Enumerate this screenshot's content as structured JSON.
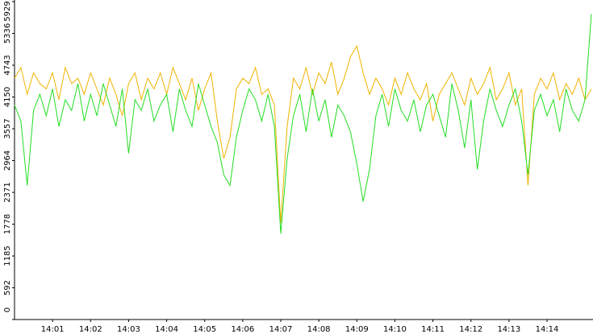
{
  "chart_data": {
    "type": "line",
    "categories": [
      null,
      null,
      null,
      null,
      null,
      null,
      "14:01",
      null,
      null,
      null,
      null,
      null,
      "14:02",
      null,
      null,
      null,
      null,
      null,
      "14:03",
      null,
      null,
      null,
      null,
      null,
      "14:04",
      null,
      null,
      null,
      null,
      null,
      "14:05",
      null,
      null,
      null,
      null,
      null,
      "14:06",
      null,
      null,
      null,
      null,
      null,
      "14:07",
      null,
      null,
      null,
      null,
      null,
      "14:08",
      null,
      null,
      null,
      null,
      null,
      "14:09",
      null,
      null,
      null,
      null,
      null,
      "14:10",
      null,
      null,
      null,
      null,
      null,
      "14:11",
      null,
      null,
      null,
      null,
      null,
      "14:12",
      null,
      null,
      null,
      null,
      null,
      "14:13",
      null,
      null,
      null,
      null,
      null,
      "14:14",
      null,
      null,
      null,
      null,
      null,
      null,
      null
    ],
    "series": [
      {
        "color": "#f0b400",
        "values": [
          4500,
          4700,
          4200,
          4600,
          4400,
          4300,
          4600,
          4100,
          4700,
          4400,
          4500,
          4200,
          4600,
          4300,
          4000,
          4500,
          4200,
          3800,
          4400,
          4600,
          4100,
          4500,
          4300,
          4600,
          4200,
          4700,
          4400,
          4100,
          4500,
          3900,
          4300,
          4600,
          3700,
          3000,
          3400,
          4300,
          4500,
          4400,
          4700,
          4200,
          4300,
          4000,
          1800,
          3600,
          4500,
          4300,
          4700,
          4200,
          4600,
          4400,
          4800,
          4200,
          4500,
          4900,
          5100,
          4600,
          4200,
          4500,
          4300,
          4000,
          4500,
          4200,
          4600,
          4300,
          4100,
          4400,
          3700,
          4200,
          4400,
          4600,
          4300,
          4000,
          4500,
          4200,
          4400,
          4700,
          4100,
          4300,
          4600,
          4000,
          4300,
          2500,
          4200,
          4500,
          4300,
          4600,
          4100,
          4400,
          4200,
          4500,
          4100,
          4300
        ]
      },
      {
        "color": "#22dd22",
        "values": [
          4000,
          3700,
          2500,
          3900,
          4200,
          3800,
          4300,
          3600,
          4100,
          3900,
          4400,
          3700,
          4200,
          3800,
          4400,
          4000,
          3600,
          4300,
          3100,
          4100,
          3900,
          4300,
          3700,
          4000,
          4200,
          3500,
          4300,
          3900,
          3600,
          4400,
          4000,
          3600,
          3300,
          2700,
          2500,
          3400,
          3900,
          4300,
          4100,
          3700,
          4200,
          3600,
          1600,
          3000,
          3800,
          4200,
          3500,
          4300,
          3700,
          4100,
          3400,
          4000,
          3800,
          3500,
          2900,
          2200,
          2800,
          3800,
          4200,
          3600,
          4300,
          3900,
          3700,
          4100,
          3500,
          4000,
          4200,
          3800,
          3400,
          4400,
          3900,
          3200,
          4100,
          2800,
          3700,
          4300,
          3900,
          3600,
          4000,
          4300,
          3700,
          2700,
          3900,
          4200,
          3800,
          4100,
          3500,
          4300,
          3900,
          3700,
          4100,
          5700
        ]
      }
    ],
    "ylim": [
      0,
      5929
    ],
    "yticks": [
      0,
      592,
      1185,
      1778,
      2371,
      2964,
      3557,
      4150,
      4743,
      5336,
      5929
    ]
  }
}
